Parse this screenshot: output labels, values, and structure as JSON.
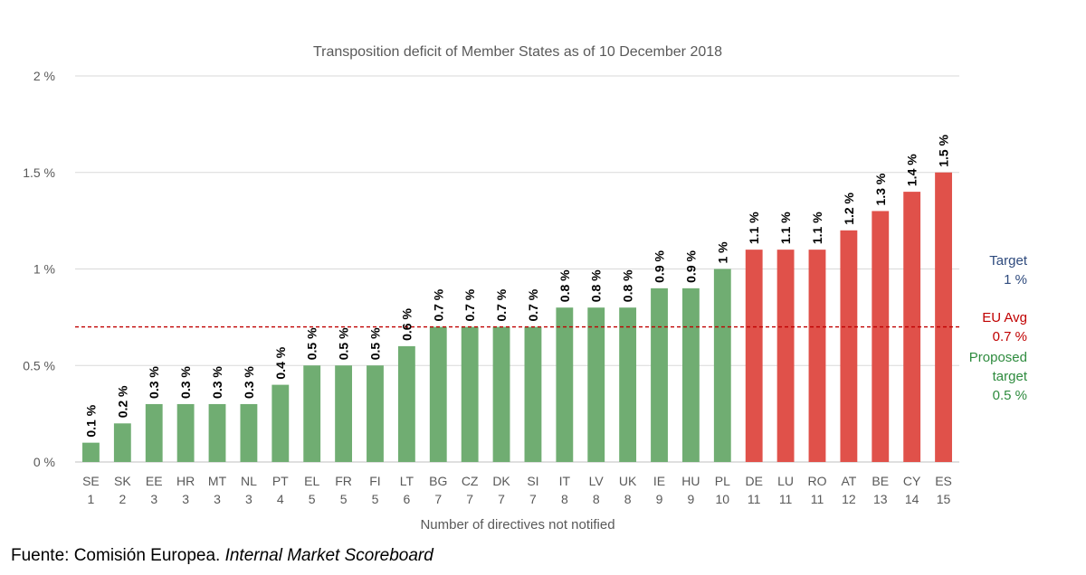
{
  "chart_data": {
    "type": "bar",
    "title": "Transposition deficit of Member States as of 10 December 2018",
    "xlabel": "Number of directives not notified",
    "ylabel": "",
    "ylim": [
      0,
      2
    ],
    "yticks": [
      {
        "value": 0,
        "label": "0 %"
      },
      {
        "value": 0.5,
        "label": "0.5 %"
      },
      {
        "value": 1,
        "label": "1 %"
      },
      {
        "value": 1.5,
        "label": "1.5 %"
      },
      {
        "value": 2,
        "label": "2 %"
      }
    ],
    "grid": true,
    "categories": [
      "SE",
      "SK",
      "EE",
      "HR",
      "MT",
      "NL",
      "PT",
      "EL",
      "FR",
      "FI",
      "LT",
      "BG",
      "CZ",
      "DK",
      "SI",
      "IT",
      "LV",
      "UK",
      "IE",
      "HU",
      "PL",
      "DE",
      "LU",
      "RO",
      "AT",
      "BE",
      "CY",
      "ES"
    ],
    "directives": [
      "1",
      "2",
      "3",
      "3",
      "3",
      "3",
      "4",
      "5",
      "5",
      "5",
      "6",
      "7",
      "7",
      "7",
      "7",
      "8",
      "8",
      "8",
      "9",
      "9",
      "10",
      "11",
      "11",
      "11",
      "12",
      "13",
      "14",
      "15"
    ],
    "values": [
      0.1,
      0.2,
      0.3,
      0.3,
      0.3,
      0.3,
      0.4,
      0.5,
      0.5,
      0.5,
      0.6,
      0.7,
      0.7,
      0.7,
      0.7,
      0.8,
      0.8,
      0.8,
      0.9,
      0.9,
      1.0,
      1.1,
      1.1,
      1.1,
      1.2,
      1.3,
      1.4,
      1.5
    ],
    "value_labels": [
      "0.1 %",
      "0.2 %",
      "0.3 %",
      "0.3 %",
      "0.3 %",
      "0.3 %",
      "0.4 %",
      "0.5 %",
      "0.5 %",
      "0.5 %",
      "0.6 %",
      "0.7 %",
      "0.7 %",
      "0.7 %",
      "0.7 %",
      "0.8 %",
      "0.8 %",
      "0.8 %",
      "0.9 %",
      "0.9 %",
      "1 %",
      "1.1 %",
      "1.1 %",
      "1.1 %",
      "1.2 %",
      "1.3 %",
      "1.4 %",
      "1.5 %"
    ],
    "bar_groups": [
      "below",
      "below",
      "below",
      "below",
      "below",
      "below",
      "below",
      "below",
      "below",
      "below",
      "below",
      "below",
      "below",
      "below",
      "below",
      "below",
      "below",
      "below",
      "below",
      "below",
      "below",
      "above",
      "above",
      "above",
      "above",
      "above",
      "above",
      "above"
    ],
    "colors": {
      "below": "#70ad72",
      "above": "#e0514a",
      "avg_line": "#c00000"
    },
    "reference_lines": [
      {
        "name": "EU Avg",
        "value": 0.7,
        "style": "dashed",
        "color": "#c00000"
      }
    ],
    "annotations": [
      {
        "lines": [
          "Target",
          "1 %"
        ],
        "color": "#2e4a7d"
      },
      {
        "lines": [
          "EU Avg",
          "0.7 %"
        ],
        "color": "#c00000"
      },
      {
        "lines": [
          "Proposed",
          "target",
          "0.5 %"
        ],
        "color": "#2e8b3e"
      }
    ]
  },
  "source": {
    "prefix": "Fuente: Comisión Europea. ",
    "italic": "Internal Market Scoreboard"
  }
}
